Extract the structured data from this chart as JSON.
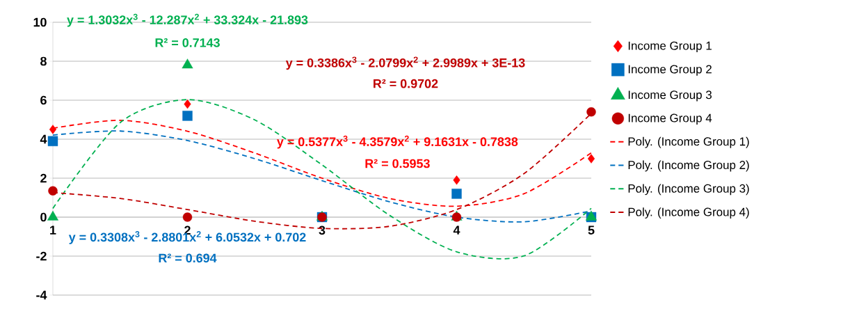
{
  "chart_data": {
    "type": "scatter",
    "x": [
      1,
      2,
      3,
      4,
      5
    ],
    "xlim": [
      1,
      5
    ],
    "xticks": [
      1,
      2,
      3,
      4,
      5
    ],
    "ylim": [
      -4,
      10
    ],
    "yticks": [
      -4,
      -2,
      0,
      2,
      4,
      6,
      8,
      10
    ],
    "grid": "y",
    "legend": "right",
    "series": [
      {
        "name": "Income Group 1",
        "marker": "diamond",
        "color": "#ff0000",
        "values": [
          4.5,
          5.8,
          null,
          1.9,
          3.0
        ]
      },
      {
        "name": "Income Group 2",
        "marker": "square",
        "color": "#0070c0",
        "values": [
          3.9,
          5.2,
          0,
          1.2,
          0
        ]
      },
      {
        "name": "Income Group 3",
        "marker": "triangle",
        "color": "#00b050",
        "values": [
          0,
          7.8,
          0,
          0,
          0
        ]
      },
      {
        "name": "Income Group 4",
        "marker": "circle",
        "color": "#c00000",
        "values": [
          1.35,
          0,
          0,
          0,
          5.4
        ]
      },
      {
        "name": "Poly. (Income Group 1)",
        "type": "line",
        "line_style": "dashed",
        "color": "#ff0000",
        "x": [
          1,
          1.5,
          2,
          2.5,
          3,
          3.5,
          4,
          4.5,
          5
        ],
        "values": [
          4.56,
          4.97,
          4.41,
          3.29,
          2.0,
          0.96,
          0.56,
          1.2,
          3.3
        ]
      },
      {
        "name": "Poly. (Income Group 2)",
        "type": "line",
        "line_style": "dashed",
        "color": "#0070c0",
        "x": [
          1,
          1.5,
          2,
          2.5,
          3,
          3.5,
          4,
          4.5,
          5
        ],
        "values": [
          4.21,
          4.42,
          3.93,
          3.0,
          1.87,
          0.79,
          0.0,
          -0.24,
          0.32
        ]
      },
      {
        "name": "Poly. (Income Group 3)",
        "type": "line",
        "line_style": "dashed",
        "color": "#00b050",
        "x": [
          1,
          1.5,
          2,
          2.5,
          3,
          3.5,
          4,
          4.5,
          5
        ],
        "values": [
          0.45,
          4.85,
          6.03,
          4.99,
          2.68,
          0.1,
          -1.78,
          -1.99,
          0.45
        ]
      },
      {
        "name": "Poly. (Income Group 4)",
        "type": "line",
        "line_style": "dashed",
        "color": "#c00000",
        "x": [
          1,
          1.5,
          2,
          2.5,
          3,
          3.5,
          4,
          4.5,
          5
        ],
        "values": [
          1.26,
          0.96,
          0.39,
          -0.21,
          -0.58,
          -0.47,
          0.39,
          2.23,
          5.32
        ]
      }
    ],
    "annotations": [
      "y = 0.5377x$^{3}$ - 4.3579x$^{2}$ + 9.1631x - 0.7838",
      "R² = 0.5953",
      "y = 0.3308x$^{3}$ - 2.8801x$^{2}$ + 6.0532x + 0.702",
      "R² = 0.694",
      "y = 1.3032x$^{3}$ - 12.287x$^{2}$ + 33.324x - 21.893",
      "R² = 0.7143",
      "y = 0.3386x$^{3}$ - 2.0799x$^{2}$ + 2.9989x + 3E-13",
      "R² = 0.9702"
    ]
  }
}
